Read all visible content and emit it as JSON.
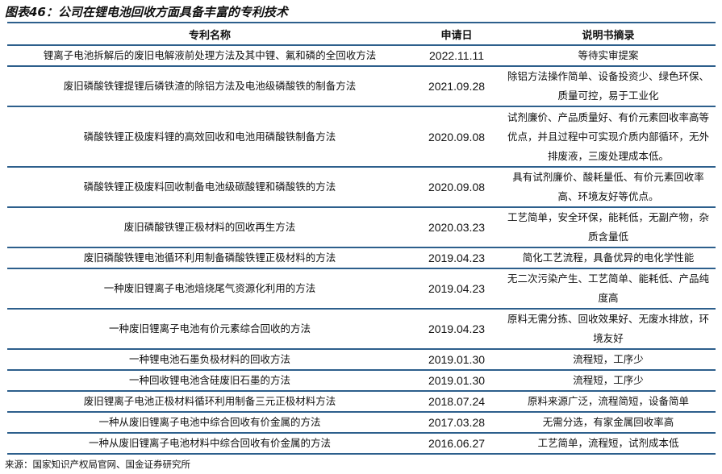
{
  "title": "图表46：公司在锂电池回收方面具备丰富的专利技术",
  "headers": [
    "专利名称",
    "申请日",
    "说明书摘录"
  ],
  "rows": [
    {
      "name": "锂离子电池拆解后的废旧电解液前处理方法及其中锂、氟和磷的全回收方法",
      "date": "2022.11.11",
      "desc": "等待实审提案"
    },
    {
      "name": "废旧磷酸铁锂提锂后磷铁渣的除铝方法及电池级磷酸铁的制备方法",
      "date": "2021.09.28",
      "desc": "除铝方法操作简单、设备投资少、绿色环保、质量可控，易于工业化"
    },
    {
      "name": "磷酸铁锂正极废料锂的高效回收和电池用磷酸铁制备方法",
      "date": "2020.09.08",
      "desc": "试剂廉价、产品质量好、有价元素回收率高等优点，并且过程中可实现介质内部循环，无外排废液，三废处理成本低。"
    },
    {
      "name": "磷酸铁锂正极废料回收制备电池级碳酸锂和磷酸铁的方法",
      "date": "2020.09.08",
      "desc": "具有试剂廉价、酸耗量低、有价元素回收率高、环境友好等优点。"
    },
    {
      "name": "废旧磷酸铁锂正极材料的回收再生方法",
      "date": "2020.03.23",
      "desc": "工艺简单，安全环保，能耗低，无副产物，杂质含量低"
    },
    {
      "name": "废旧磷酸铁锂电池循环利用制备磷酸铁锂正极材料的方法",
      "date": "2019.04.23",
      "desc": "简化工艺流程，具备优异的电化学性能"
    },
    {
      "name": "一种废旧锂离子电池焙烧尾气资源化利用的方法",
      "date": "2019.04.23",
      "desc": "无二次污染产生、工艺简单、能耗低、产品纯度高"
    },
    {
      "name": "一种废旧锂离子电池有价元素综合回收的方法",
      "date": "2019.04.23",
      "desc": "原料无需分拣、回收效果好、无废水排放，环境友好"
    },
    {
      "name": "一种锂电池石墨负极材料的回收方法",
      "date": "2019.01.30",
      "desc": "流程短，工序少"
    },
    {
      "name": "一种回收锂电池含硅废旧石墨的方法",
      "date": "2019.01.30",
      "desc": "流程短，工序少"
    },
    {
      "name": "废旧锂离子电池正极材料循环利用制备三元正极材料方法",
      "date": "2018.07.24",
      "desc": "原料来源广泛，流程简短，设备简单"
    },
    {
      "name": "一种从废旧锂离子电池中综合回收有价金属的方法",
      "date": "2017.03.28",
      "desc": "无需分选，有家金属回收率高"
    },
    {
      "name": "一种从废旧锂离子电池材料中综合回收有价金属的方法",
      "date": "2016.06.27",
      "desc": "工艺简单，流程短，试剂成本低"
    }
  ],
  "source": "来源：国家知识产权局官网、国金证券研究所"
}
